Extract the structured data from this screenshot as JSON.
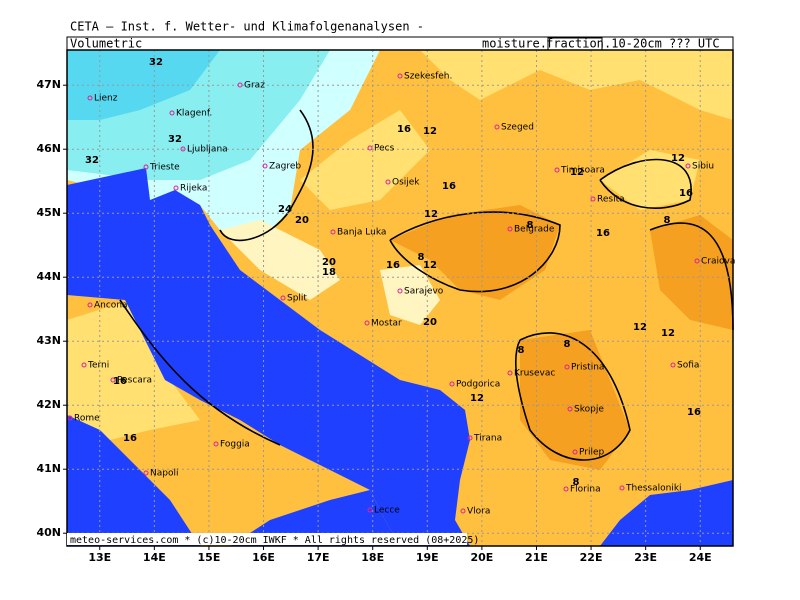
{
  "header": {
    "title": "CETA — Inst. f. Wetter- und Klimafolgenanalysen -",
    "left": "Volumetric",
    "right_prefix": "moisture.",
    "right_box": "fraction",
    "right_suffix": ".10-20cm ??? UTC"
  },
  "map": {
    "lon_lim": [
      12.4,
      24.6
    ],
    "lat_lim": [
      39.8,
      47.55
    ],
    "lon_ticks": [
      {
        "value": 13,
        "label": "13E"
      },
      {
        "value": 14,
        "label": "14E"
      },
      {
        "value": 15,
        "label": "15E"
      },
      {
        "value": 16,
        "label": "16E"
      },
      {
        "value": 17,
        "label": "17E"
      },
      {
        "value": 18,
        "label": "18E"
      },
      {
        "value": 19,
        "label": "19E"
      },
      {
        "value": 20,
        "label": "20E"
      },
      {
        "value": 21,
        "label": "21E"
      },
      {
        "value": 22,
        "label": "22E"
      },
      {
        "value": 23,
        "label": "23E"
      },
      {
        "value": 24,
        "label": "24E"
      }
    ],
    "lat_ticks": [
      {
        "value": 47,
        "label": "47N"
      },
      {
        "value": 46,
        "label": "46N"
      },
      {
        "value": 45,
        "label": "45N"
      },
      {
        "value": 44,
        "label": "44N"
      },
      {
        "value": 43,
        "label": "43N"
      },
      {
        "value": 42,
        "label": "42N"
      },
      {
        "value": 41,
        "label": "41N"
      },
      {
        "value": 40,
        "label": "40N"
      }
    ],
    "cities": [
      "Graz",
      "Lienz",
      "Klagenf.",
      "Ljubljana",
      "Trieste",
      "Rijeka",
      "Zagreb",
      "Szekesfeh.",
      "Pecs",
      "Osijek",
      "Szeged",
      "Timisoara",
      "Resita",
      "Sibiu",
      "Banja Luka",
      "Belgrade",
      "Craiova",
      "Sarajevo",
      "Split",
      "Ancona",
      "Mostar",
      "Terni",
      "Pescara",
      "Podgorica",
      "Krusevac",
      "Pristina",
      "Sofia",
      "Rome",
      "Skopje",
      "Tirana",
      "Foggia",
      "Prilep",
      "Napoli",
      "Florina",
      "Thessaloniki",
      "Lecce",
      "Vlora"
    ],
    "contour_labels": [
      32,
      32,
      32,
      24,
      20,
      20,
      18,
      16,
      8,
      12,
      16,
      12,
      16,
      12,
      8,
      12,
      16,
      16,
      12,
      8,
      12,
      12,
      8,
      8,
      20,
      16,
      16,
      12,
      16,
      8
    ]
  },
  "footer": "meteo-services.com * (c)10-20cm IWKF * All rights reserved (08+2025)"
}
